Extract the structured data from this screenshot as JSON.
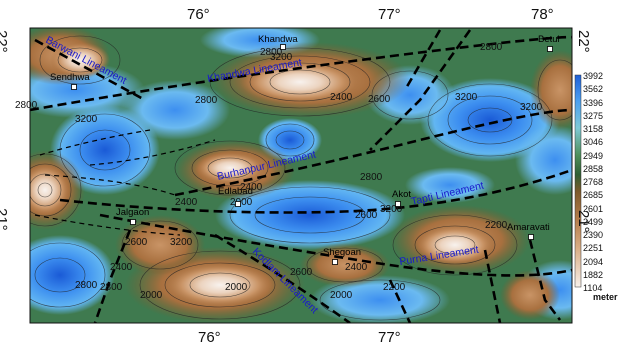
{
  "map": {
    "top_longitudes": [
      "76°",
      "77°",
      "78°"
    ],
    "bottom_longitudes": [
      "76°",
      "77°"
    ],
    "left_latitudes": [
      "22°",
      "21°"
    ],
    "right_latitudes": [
      "22°",
      "21°"
    ]
  },
  "places": [
    {
      "name": "Khandwa"
    },
    {
      "name": "Betul"
    },
    {
      "name": "Sendhwa"
    },
    {
      "name": "Edlabad"
    },
    {
      "name": "Akot"
    },
    {
      "name": "Jalgaon"
    },
    {
      "name": "Amaravati"
    },
    {
      "name": "Shegoan"
    }
  ],
  "lineaments": [
    {
      "name": "Barwani Lineament"
    },
    {
      "name": "Khandwa Lineament"
    },
    {
      "name": "Burhanpur Lineament"
    },
    {
      "name": "Tapti Lineament"
    },
    {
      "name": "Purna Lineament"
    },
    {
      "name": "Kodlam Lineament"
    }
  ],
  "contour_labels": [
    "2800",
    "2400",
    "2600",
    "3200",
    "2800",
    "3200",
    "2800",
    "2800",
    "3200",
    "2400",
    "2600",
    "3200",
    "2000",
    "2400",
    "2600",
    "3200",
    "2800",
    "2000",
    "2400",
    "2200",
    "2000",
    "2800",
    "3200",
    "2400",
    "2200",
    "2000",
    "2600",
    "2800"
  ],
  "legend": {
    "values": [
      "3992",
      "3562",
      "3396",
      "3275",
      "3158",
      "3046",
      "2949",
      "2858",
      "2768",
      "2685",
      "2601",
      "2499",
      "2390",
      "2251",
      "2094",
      "1882",
      "1104"
    ],
    "unit": "meter",
    "colors": [
      "#1e5fd8",
      "#2f80e8",
      "#4a9ef0",
      "#6bbaf0",
      "#7ec9d6",
      "#6fb99a",
      "#4e8f5a",
      "#2f5e33",
      "#5a5a2f",
      "#7d5a2c",
      "#9c6a3a",
      "#b47c4a",
      "#c99466",
      "#d9ae86",
      "#e6c6aa",
      "#f0dccb",
      "#f8f0ea"
    ]
  }
}
